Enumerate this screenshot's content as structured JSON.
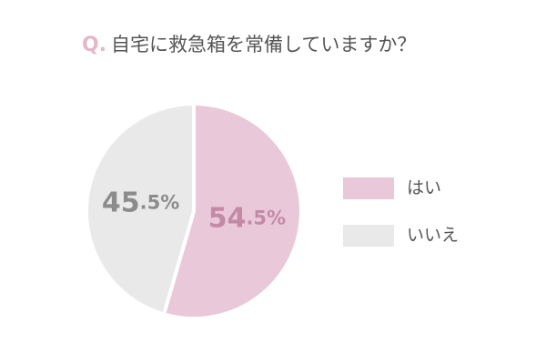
{
  "chart_data": {
    "type": "pie",
    "question_label": "Q.",
    "title": "自宅に救急箱を常備していますか？",
    "categories": [
      "はい",
      "いいえ"
    ],
    "values": [
      54.5,
      45.5
    ],
    "value_labels": [
      "54.5%",
      "45.5%"
    ],
    "colors": [
      "#e9c9d9",
      "#e9e9e9"
    ],
    "label_colors": [
      "#c48aa5",
      "#8c8c8c"
    ],
    "legend": "right"
  }
}
